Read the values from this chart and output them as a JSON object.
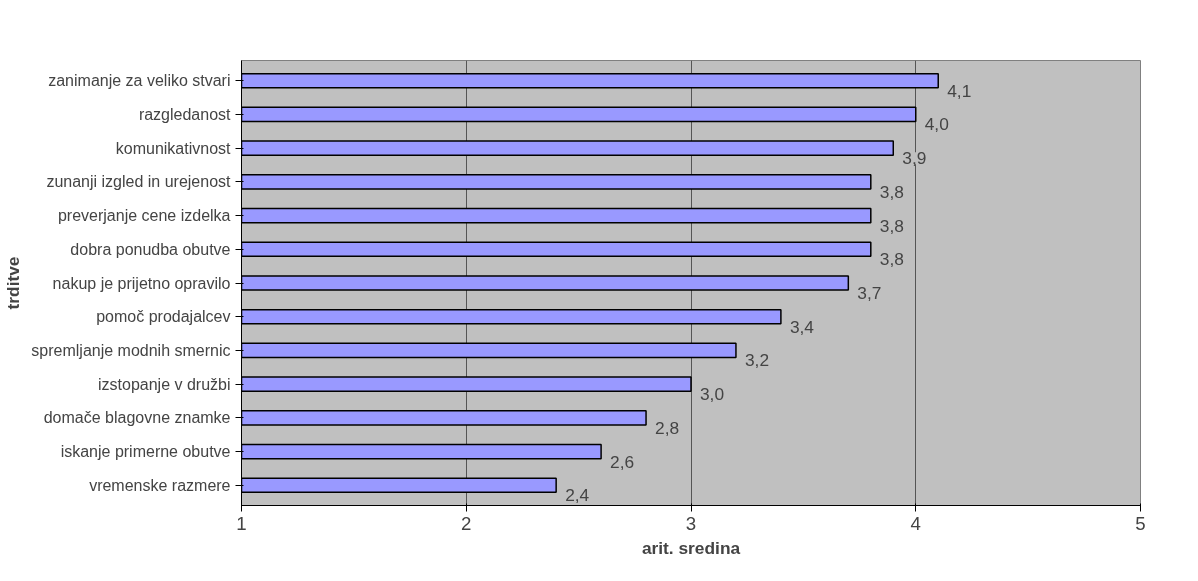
{
  "chart_data": {
    "type": "bar",
    "orientation": "horizontal",
    "categories": [
      "zanimanje za veliko stvari",
      "razgledanost",
      "komunikativnost",
      "zunanji izgled in urejenost",
      "preverjanje cene izdelka",
      "dobra ponudba obutve",
      "nakup je prijetno opravilo",
      "pomoč prodajalcev",
      "spremljanje modnih smernic",
      "izstopanje v družbi",
      "domače blagovne znamke",
      "iskanje primerne obutve",
      "vremenske razmere"
    ],
    "values": [
      4.1,
      4.0,
      3.9,
      3.8,
      3.8,
      3.8,
      3.7,
      3.4,
      3.2,
      3.0,
      2.8,
      2.6,
      2.4
    ],
    "value_labels": [
      "4,1",
      "4,0",
      "3,9",
      "3,8",
      "3,8",
      "3,8",
      "3,7",
      "3,4",
      "3,2",
      "3,0",
      "2,8",
      "2,6",
      "2,4"
    ],
    "color": "#9999ff",
    "xlim": [
      1,
      5
    ],
    "xticks": [
      1,
      2,
      3,
      4,
      5
    ],
    "grid": "x",
    "xlabel": "arit. sredina",
    "ylabel": "trditve"
  }
}
